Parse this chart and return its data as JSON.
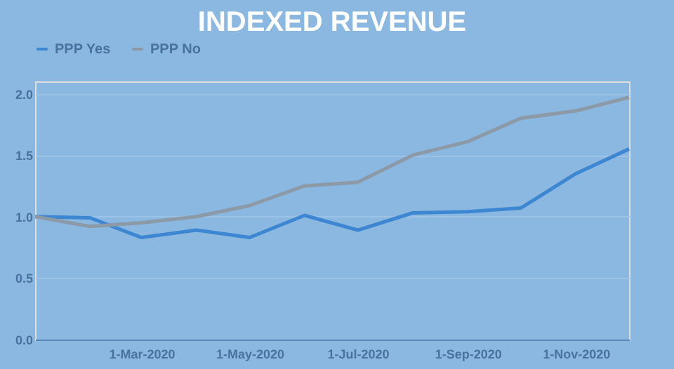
{
  "chart_data": {
    "type": "line",
    "title": "INDEXED REVENUE",
    "x": [
      "2020-01-01",
      "2020-02-01",
      "2020-03-01",
      "2020-04-01",
      "2020-05-01",
      "2020-06-01",
      "2020-07-01",
      "2020-08-01",
      "2020-09-01",
      "2020-10-01",
      "2020-11-01",
      "2020-12-01"
    ],
    "series": [
      {
        "name": "PPP Yes",
        "color": "#3d86d1",
        "values": [
          1.0,
          0.99,
          0.83,
          0.89,
          0.83,
          1.01,
          0.89,
          1.03,
          1.04,
          1.07,
          1.35,
          1.55
        ]
      },
      {
        "name": "PPP No",
        "color": "#8c9aa8",
        "values": [
          1.0,
          0.92,
          0.95,
          1.0,
          1.09,
          1.25,
          1.28,
          1.5,
          1.61,
          1.8,
          1.86,
          1.97
        ]
      }
    ],
    "xlim": [
      "2020-01-01",
      "2020-12-01"
    ],
    "xticks": [
      {
        "value": "2020-03-01",
        "label": "1-Mar-2020"
      },
      {
        "value": "2020-05-01",
        "label": "1-May-2020"
      },
      {
        "value": "2020-07-01",
        "label": "1-Jul-2020"
      },
      {
        "value": "2020-09-01",
        "label": "1-Sep-2020"
      },
      {
        "value": "2020-11-01",
        "label": "1-Nov-2020"
      }
    ],
    "ylim": [
      0,
      2.1
    ],
    "yticks": [
      {
        "value": 0,
        "label": "0.0"
      },
      {
        "value": 0.5,
        "label": "0.5"
      },
      {
        "value": 1,
        "label": "1.0"
      },
      {
        "value": 1.5,
        "label": "1.5"
      },
      {
        "value": 2,
        "label": "2.0"
      }
    ],
    "grid": "y",
    "legend": "top",
    "marker": "none",
    "line_style": "solid"
  }
}
